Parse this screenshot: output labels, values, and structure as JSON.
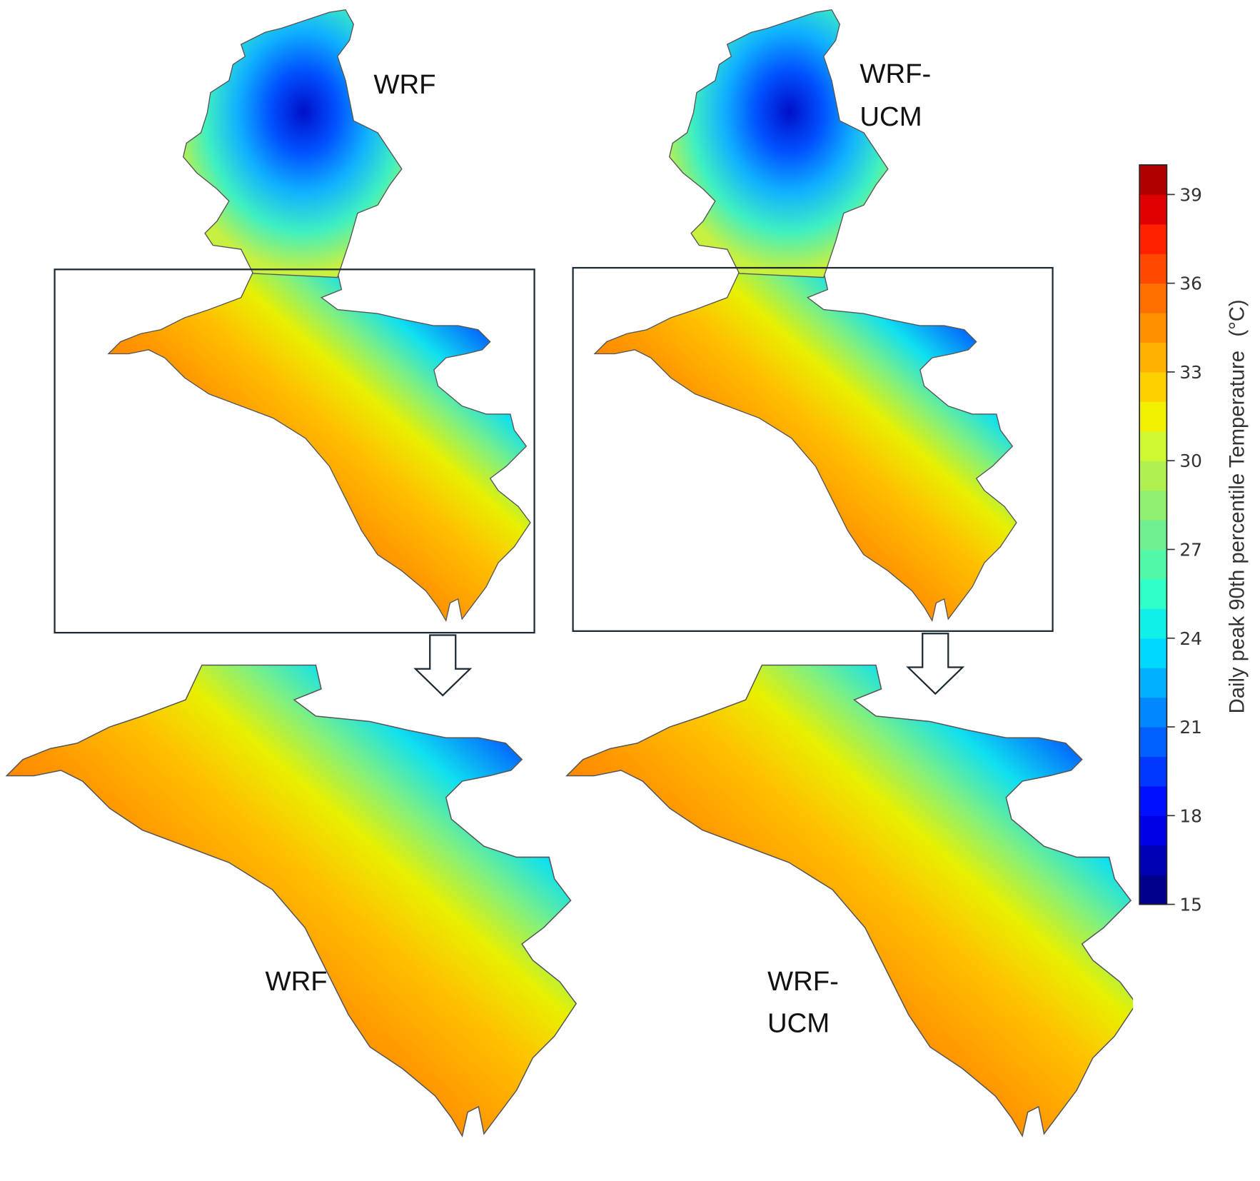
{
  "panels": {
    "top_left_label": "WRF",
    "top_right_label_line1": "WRF-",
    "top_right_label_line2": "UCM",
    "bottom_left_label": "WRF",
    "bottom_right_label_line1": "WRF-",
    "bottom_right_label_line2": "UCM"
  },
  "colorbar": {
    "title": "Daily peak 90th percentile Temperature",
    "unit": "(°C)",
    "min": 15,
    "max": 40,
    "ticks": [
      15,
      18,
      21,
      24,
      27,
      30,
      33,
      36,
      39
    ],
    "band_colors": [
      "#00008c",
      "#0000b4",
      "#0000e6",
      "#0010ff",
      "#0038ff",
      "#0060ff",
      "#0088ff",
      "#00b0ff",
      "#00d8ff",
      "#10f0e8",
      "#30ffc8",
      "#50f8a8",
      "#70f090",
      "#90f070",
      "#b0f050",
      "#d0f830",
      "#f0f000",
      "#ffd000",
      "#ffb000",
      "#ff9000",
      "#ff7000",
      "#ff4800",
      "#ff2000",
      "#e00000",
      "#b00000"
    ]
  }
}
